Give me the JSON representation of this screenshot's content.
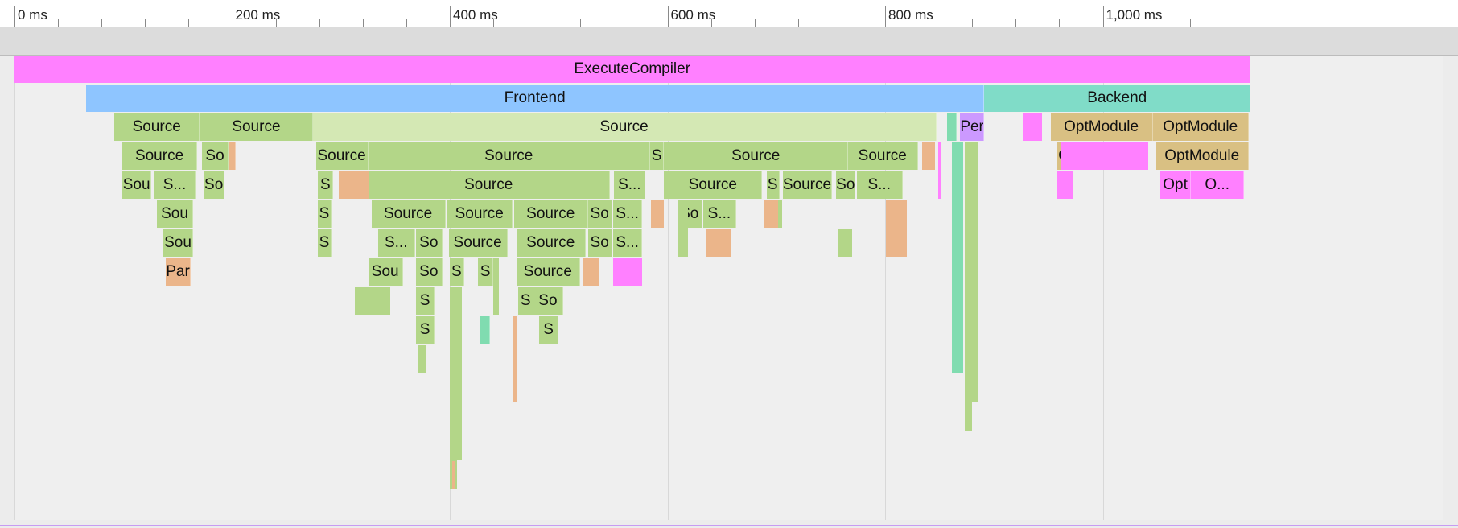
{
  "ruler": {
    "ticks": [
      "0 ms",
      "200 ms",
      "400 ms",
      "600 ms",
      "800 ms",
      "1,000 ms"
    ],
    "scale": {
      "ms_min": 0,
      "ms_max": 1140
    }
  },
  "colors": {
    "execute": "#ff80ff",
    "frontend": "#8ec5ff",
    "backend": "#80dcc8",
    "source": "#b3d688",
    "source_light": "#d4e8b4",
    "parse": "#ebb58a",
    "opt": "#d9c083",
    "perf": "#cc99ff",
    "pink": "#ff80ff",
    "teal": "#80dcb0"
  },
  "flame": [
    {
      "label": "ExecuteCompiler",
      "start": 0,
      "end": 1136,
      "depth": 0,
      "color": "execute"
    },
    {
      "label": "Frontend",
      "start": 66,
      "end": 891,
      "depth": 1,
      "color": "frontend"
    },
    {
      "label": "Backend",
      "start": 891,
      "end": 1136,
      "depth": 1,
      "color": "backend"
    },
    {
      "label": "Source",
      "start": 92,
      "end": 170,
      "depth": 2,
      "color": "source"
    },
    {
      "label": "Source",
      "start": 171,
      "end": 274,
      "depth": 2,
      "color": "source"
    },
    {
      "label": "Source",
      "start": 274,
      "end": 847,
      "depth": 2,
      "color": "source_light"
    },
    {
      "label": "",
      "start": 857,
      "end": 866,
      "depth": 2,
      "color": "teal"
    },
    {
      "label": "Per",
      "start": 869,
      "end": 891,
      "depth": 2,
      "color": "perf"
    },
    {
      "label": "OptModule",
      "start": 952,
      "end": 1046,
      "depth": 2,
      "color": "opt"
    },
    {
      "label": "OptModule",
      "start": 1046,
      "end": 1134,
      "depth": 2,
      "color": "opt"
    },
    {
      "label": "Source",
      "start": 99,
      "end": 168,
      "depth": 3,
      "color": "source"
    },
    {
      "label": "So",
      "start": 172,
      "end": 197,
      "depth": 3,
      "color": "source"
    },
    {
      "label": "",
      "start": 197,
      "end": 203,
      "depth": 3,
      "color": "parse"
    },
    {
      "label": "Source",
      "start": 277,
      "end": 325,
      "depth": 3,
      "color": "source"
    },
    {
      "label": "Source",
      "start": 325,
      "end": 584,
      "depth": 3,
      "color": "source"
    },
    {
      "label": "S",
      "start": 584,
      "end": 597,
      "depth": 3,
      "color": "source"
    },
    {
      "label": "Source",
      "start": 597,
      "end": 766,
      "depth": 3,
      "color": "source"
    },
    {
      "label": "Source",
      "start": 766,
      "end": 830,
      "depth": 3,
      "color": "source"
    },
    {
      "label": "O",
      "start": 958,
      "end": 972,
      "depth": 3,
      "color": "opt"
    },
    {
      "label": "OptModule",
      "start": 1049,
      "end": 1134,
      "depth": 3,
      "color": "opt"
    },
    {
      "label": "Sou",
      "start": 99,
      "end": 126,
      "depth": 4,
      "color": "source"
    },
    {
      "label": "S...",
      "start": 129,
      "end": 166,
      "depth": 4,
      "color": "source"
    },
    {
      "label": "So",
      "start": 174,
      "end": 193,
      "depth": 4,
      "color": "source"
    },
    {
      "label": "S",
      "start": 279,
      "end": 293,
      "depth": 4,
      "color": "source"
    },
    {
      "label": "Source",
      "start": 325,
      "end": 547,
      "depth": 4,
      "color": "source"
    },
    {
      "label": "S...",
      "start": 551,
      "end": 580,
      "depth": 4,
      "color": "source"
    },
    {
      "label": "Source",
      "start": 597,
      "end": 687,
      "depth": 4,
      "color": "source"
    },
    {
      "label": "S",
      "start": 691,
      "end": 703,
      "depth": 4,
      "color": "source"
    },
    {
      "label": "Source",
      "start": 706,
      "end": 751,
      "depth": 4,
      "color": "source"
    },
    {
      "label": "So",
      "start": 755,
      "end": 773,
      "depth": 4,
      "color": "source"
    },
    {
      "label": "S...",
      "start": 774,
      "end": 816,
      "depth": 4,
      "color": "source"
    },
    {
      "label": "Opt",
      "start": 1053,
      "end": 1081,
      "depth": 4,
      "color": "pink"
    },
    {
      "label": "O...",
      "start": 1081,
      "end": 1130,
      "depth": 4,
      "color": "pink"
    },
    {
      "label": "Sou",
      "start": 131,
      "end": 164,
      "depth": 5,
      "color": "source"
    },
    {
      "label": "S",
      "start": 279,
      "end": 291,
      "depth": 5,
      "color": "source"
    },
    {
      "label": "Source",
      "start": 328,
      "end": 396,
      "depth": 5,
      "color": "source"
    },
    {
      "label": "Source",
      "start": 397,
      "end": 458,
      "depth": 5,
      "color": "source"
    },
    {
      "label": "Source",
      "start": 459,
      "end": 527,
      "depth": 5,
      "color": "source"
    },
    {
      "label": "So",
      "start": 527,
      "end": 549,
      "depth": 5,
      "color": "source"
    },
    {
      "label": "S...",
      "start": 550,
      "end": 577,
      "depth": 5,
      "color": "source"
    },
    {
      "label": "So",
      "start": 609,
      "end": 632,
      "depth": 5,
      "color": "source"
    },
    {
      "label": "S...",
      "start": 633,
      "end": 663,
      "depth": 5,
      "color": "source"
    },
    {
      "label": "Sou",
      "start": 137,
      "end": 164,
      "depth": 6,
      "color": "source"
    },
    {
      "label": "S",
      "start": 279,
      "end": 291,
      "depth": 6,
      "color": "source"
    },
    {
      "label": "S...",
      "start": 334,
      "end": 368,
      "depth": 6,
      "color": "source"
    },
    {
      "label": "So",
      "start": 369,
      "end": 393,
      "depth": 6,
      "color": "source"
    },
    {
      "label": "Source",
      "start": 399,
      "end": 453,
      "depth": 6,
      "color": "source"
    },
    {
      "label": "Source",
      "start": 461,
      "end": 525,
      "depth": 6,
      "color": "source"
    },
    {
      "label": "So",
      "start": 527,
      "end": 549,
      "depth": 6,
      "color": "source"
    },
    {
      "label": "S...",
      "start": 550,
      "end": 577,
      "depth": 6,
      "color": "source"
    },
    {
      "label": "Par",
      "start": 139,
      "end": 162,
      "depth": 7,
      "color": "parse"
    },
    {
      "label": "Sou",
      "start": 325,
      "end": 357,
      "depth": 7,
      "color": "source"
    },
    {
      "label": "So",
      "start": 369,
      "end": 393,
      "depth": 7,
      "color": "source"
    },
    {
      "label": "S",
      "start": 400,
      "end": 413,
      "depth": 7,
      "color": "source"
    },
    {
      "label": "S",
      "start": 426,
      "end": 440,
      "depth": 7,
      "color": "source"
    },
    {
      "label": "Source",
      "start": 461,
      "end": 520,
      "depth": 7,
      "color": "source"
    },
    {
      "label": "S",
      "start": 369,
      "end": 386,
      "depth": 8,
      "color": "source"
    },
    {
      "label": "S",
      "start": 463,
      "end": 477,
      "depth": 8,
      "color": "source"
    },
    {
      "label": "So",
      "start": 477,
      "end": 504,
      "depth": 8,
      "color": "source"
    },
    {
      "label": "S",
      "start": 369,
      "end": 386,
      "depth": 9,
      "color": "source"
    },
    {
      "label": "",
      "start": 427,
      "end": 437,
      "depth": 9,
      "color": "teal"
    },
    {
      "label": "S",
      "start": 482,
      "end": 500,
      "depth": 9,
      "color": "source"
    }
  ],
  "slivers": [
    {
      "start": 861,
      "end": 872,
      "depth_from": 3,
      "depth_to": 11,
      "color": "teal"
    },
    {
      "start": 873,
      "end": 880,
      "depth_from": 3,
      "depth_to": 13,
      "color": "source"
    },
    {
      "start": 880,
      "end": 885,
      "depth_from": 3,
      "depth_to": 12,
      "color": "source"
    },
    {
      "start": 400,
      "end": 407,
      "depth_from": 8,
      "depth_to": 15,
      "color": "source"
    },
    {
      "start": 407,
      "end": 411,
      "depth_from": 8,
      "depth_to": 14,
      "color": "source"
    },
    {
      "start": 402,
      "end": 405,
      "depth_from": 14,
      "depth_to": 15,
      "color": "parse"
    },
    {
      "start": 458,
      "end": 462,
      "depth_from": 9,
      "depth_to": 12,
      "color": "parse"
    },
    {
      "start": 313,
      "end": 345,
      "depth_from": 8,
      "depth_to": 9,
      "color": "source"
    },
    {
      "start": 371,
      "end": 378,
      "depth_from": 10,
      "depth_to": 11,
      "color": "source"
    },
    {
      "start": 609,
      "end": 619,
      "depth_from": 5,
      "depth_to": 7,
      "color": "source"
    },
    {
      "start": 694,
      "end": 705,
      "depth_from": 5,
      "depth_to": 6,
      "color": "source"
    },
    {
      "start": 757,
      "end": 770,
      "depth_from": 6,
      "depth_to": 7,
      "color": "source"
    },
    {
      "start": 298,
      "end": 325,
      "depth_from": 4,
      "depth_to": 5,
      "color": "parse"
    },
    {
      "start": 550,
      "end": 577,
      "depth_from": 7,
      "depth_to": 8,
      "color": "pink"
    },
    {
      "start": 636,
      "end": 659,
      "depth_from": 6,
      "depth_to": 7,
      "color": "parse"
    },
    {
      "start": 962,
      "end": 1042,
      "depth_from": 3,
      "depth_to": 4,
      "color": "pink"
    },
    {
      "start": 958,
      "end": 972,
      "depth_from": 4,
      "depth_to": 5,
      "color": "pink"
    },
    {
      "start": 927,
      "end": 944,
      "depth_from": 2,
      "depth_to": 3,
      "color": "pink"
    },
    {
      "start": 834,
      "end": 846,
      "depth_from": 3,
      "depth_to": 4,
      "color": "parse"
    },
    {
      "start": 849,
      "end": 852,
      "depth_from": 3,
      "depth_to": 5,
      "color": "pink"
    },
    {
      "start": 801,
      "end": 820,
      "depth_from": 5,
      "depth_to": 7,
      "color": "parse"
    },
    {
      "start": 585,
      "end": 597,
      "depth_from": 5,
      "depth_to": 6,
      "color": "parse"
    },
    {
      "start": 689,
      "end": 702,
      "depth_from": 5,
      "depth_to": 6,
      "color": "parse"
    },
    {
      "start": 523,
      "end": 537,
      "depth_from": 7,
      "depth_to": 8,
      "color": "parse"
    },
    {
      "start": 440,
      "end": 445,
      "depth_from": 7,
      "depth_to": 9,
      "color": "source"
    }
  ]
}
